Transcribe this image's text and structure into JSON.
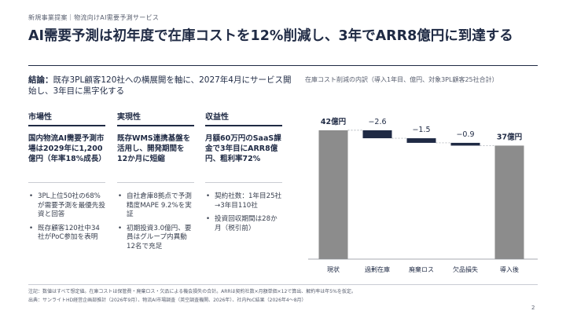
{
  "breadcrumb": "新規事業提案｜物流向けAI需要予測サービス",
  "title": "AI需要予測は初年度で在庫コストを12%削減し、3年でARR8億円に到達する",
  "conclusion": {
    "label": "結論：",
    "text": "既存3PL顧客120社への横展開を軸に、2027年4月にサービス開始し、3年目に黒字化する"
  },
  "columns": [
    {
      "heading": "市場性",
      "key": "国内物流AI需要予測市場は2029年に1,200億円（年率18%成長）",
      "bullets": [
        "3PL上位50社の68%が需要予測を最優先投資と回答",
        "既存顧客120社中34社がPoC参加を表明"
      ]
    },
    {
      "heading": "実現性",
      "key": "既存WMS連携基盤を活用し、開発期間を12か月に短縮",
      "bullets": [
        "自社倉庫8拠点で予測精度MAPE 9.2%を実証",
        "初期投資3.0億円、要員はグループ内異動12名で充足"
      ]
    },
    {
      "heading": "収益性",
      "key": "月額60万円のSaaS課金で3年目にARR8億円、粗利率72%",
      "bullets": [
        "契約社数：1年目25社→3年目110社",
        "投資回収期間は28か月（税引前）"
      ]
    }
  ],
  "chart_data": {
    "type": "bar",
    "subtype": "waterfall",
    "title": "在庫コスト削減の内訳（導入1年目、億円、対象3PL顧客25社合計）",
    "categories": [
      "現状",
      "過剰在庫",
      "廃棄ロス",
      "欠品損失",
      "導入後"
    ],
    "values": [
      42,
      -2.6,
      -1.5,
      -0.9,
      37
    ],
    "value_labels": [
      "42億円",
      "−2.6",
      "−1.5",
      "−0.9",
      "37億円"
    ],
    "kinds": [
      "total",
      "delta",
      "delta",
      "delta",
      "total"
    ],
    "ylim": [
      0,
      43
    ],
    "colors": {
      "total": "#8c8c8c",
      "delta": "#1f2a44"
    }
  },
  "footnotes": [
    "注記：数値はすべて想定値。在庫コストは保管費・廃棄ロス・欠品による機会損失の合計。ARRは契約社数×月額単価×12で算出、解約率は年5%を仮定。",
    "出典：サンライトHD経営企画部推計（2026年9月）、物流AI市場調査（英空調査機関、2026年）、社内PoC結果（2026年4〜8月）"
  ],
  "page_number": "2"
}
